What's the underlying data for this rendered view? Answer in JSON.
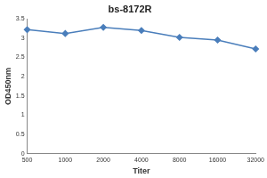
{
  "chart_data": {
    "type": "line",
    "title": "bs-8172R",
    "x_label": "Titer",
    "y_label": "OD450nm",
    "categories": [
      "500",
      "1000",
      "2000",
      "4000",
      "8000",
      "16000",
      "32000"
    ],
    "values": [
      3.22,
      3.12,
      3.28,
      3.2,
      3.02,
      2.95,
      2.72
    ],
    "color": "#4a7ebb",
    "marker": "diamond",
    "ylim": [
      0,
      3.5
    ],
    "yticks": [
      0,
      0.5,
      1,
      1.5,
      2,
      2.5,
      3,
      3.5
    ],
    "grid": false
  }
}
